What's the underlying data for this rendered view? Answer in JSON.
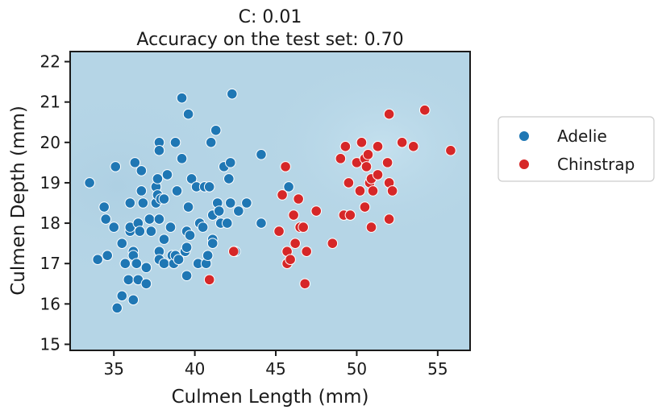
{
  "chart_data": {
    "type": "scatter",
    "title_line1": "C: 0.01",
    "title_line2": "Accuracy on the test set: 0.70",
    "xlabel": "Culmen Length (mm)",
    "ylabel": "Culmen Depth (mm)",
    "xlim": [
      32.3,
      57.0
    ],
    "ylim": [
      14.85,
      22.25
    ],
    "xticks": [
      35,
      40,
      45,
      50,
      55
    ],
    "yticks": [
      15,
      16,
      17,
      18,
      19,
      20,
      21,
      22
    ],
    "grid": false,
    "legend": "outside-right",
    "background_color": "#b5d5e6",
    "series": [
      {
        "name": "Adelie",
        "color": "#1f77b4",
        "points": [
          [
            33.5,
            19.0
          ],
          [
            34.0,
            17.1
          ],
          [
            34.4,
            18.4
          ],
          [
            34.5,
            18.1
          ],
          [
            34.6,
            17.2
          ],
          [
            35.0,
            17.9
          ],
          [
            35.1,
            19.4
          ],
          [
            35.2,
            15.9
          ],
          [
            35.5,
            17.5
          ],
          [
            35.5,
            16.2
          ],
          [
            35.7,
            17.0
          ],
          [
            35.9,
            16.6
          ],
          [
            36.0,
            17.8
          ],
          [
            36.0,
            17.9
          ],
          [
            36.0,
            18.5
          ],
          [
            36.2,
            17.3
          ],
          [
            36.2,
            17.2
          ],
          [
            36.2,
            16.1
          ],
          [
            36.3,
            19.5
          ],
          [
            36.4,
            17.0
          ],
          [
            36.5,
            16.6
          ],
          [
            36.5,
            18.0
          ],
          [
            36.6,
            17.8
          ],
          [
            36.7,
            18.8
          ],
          [
            36.7,
            19.3
          ],
          [
            36.8,
            18.5
          ],
          [
            37.0,
            16.9
          ],
          [
            37.0,
            16.5
          ],
          [
            37.2,
            18.1
          ],
          [
            37.3,
            17.8
          ],
          [
            37.6,
            18.9
          ],
          [
            37.6,
            18.5
          ],
          [
            37.7,
            18.7
          ],
          [
            37.7,
            19.1
          ],
          [
            37.8,
            20.0
          ],
          [
            37.8,
            19.8
          ],
          [
            37.8,
            18.1
          ],
          [
            37.9,
            18.6
          ],
          [
            37.8,
            17.3
          ],
          [
            37.8,
            17.1
          ],
          [
            38.1,
            18.6
          ],
          [
            38.1,
            17.6
          ],
          [
            38.1,
            17.0
          ],
          [
            38.3,
            19.2
          ],
          [
            38.5,
            17.9
          ],
          [
            38.6,
            17.2
          ],
          [
            38.7,
            17.0
          ],
          [
            38.8,
            17.2
          ],
          [
            38.8,
            20.0
          ],
          [
            38.9,
            18.8
          ],
          [
            39.0,
            17.1
          ],
          [
            39.2,
            21.1
          ],
          [
            39.2,
            19.6
          ],
          [
            39.4,
            17.3
          ],
          [
            39.5,
            17.8
          ],
          [
            39.5,
            16.7
          ],
          [
            39.5,
            17.4
          ],
          [
            39.6,
            18.4
          ],
          [
            39.6,
            20.7
          ],
          [
            39.7,
            17.7
          ],
          [
            39.8,
            19.1
          ],
          [
            40.1,
            18.9
          ],
          [
            40.2,
            17.0
          ],
          [
            40.3,
            18.0
          ],
          [
            40.5,
            17.9
          ],
          [
            40.6,
            18.9
          ],
          [
            40.7,
            17.0
          ],
          [
            40.8,
            17.2
          ],
          [
            40.9,
            18.9
          ],
          [
            41.0,
            20.0
          ],
          [
            41.1,
            17.6
          ],
          [
            41.1,
            17.5
          ],
          [
            41.1,
            18.2
          ],
          [
            41.3,
            20.3
          ],
          [
            41.4,
            18.5
          ],
          [
            41.5,
            18.3
          ],
          [
            41.6,
            18.0
          ],
          [
            41.8,
            19.4
          ],
          [
            42.0,
            18.0
          ],
          [
            42.1,
            19.1
          ],
          [
            42.2,
            18.5
          ],
          [
            42.2,
            19.5
          ],
          [
            42.3,
            21.2
          ],
          [
            42.5,
            17.3
          ],
          [
            42.7,
            18.3
          ],
          [
            43.2,
            18.5
          ],
          [
            44.1,
            19.7
          ],
          [
            44.1,
            18.0
          ],
          [
            45.8,
            18.9
          ]
        ]
      },
      {
        "name": "Chinstrap",
        "color": "#d62728",
        "points": [
          [
            40.9,
            16.6
          ],
          [
            42.4,
            17.3
          ],
          [
            45.2,
            17.8
          ],
          [
            45.4,
            18.7
          ],
          [
            45.6,
            19.4
          ],
          [
            45.7,
            17.3
          ],
          [
            45.7,
            17.0
          ],
          [
            45.9,
            17.1
          ],
          [
            46.1,
            18.2
          ],
          [
            46.2,
            17.5
          ],
          [
            46.4,
            18.6
          ],
          [
            46.5,
            17.9
          ],
          [
            46.7,
            17.9
          ],
          [
            46.8,
            16.5
          ],
          [
            46.9,
            17.3
          ],
          [
            47.5,
            18.3
          ],
          [
            48.5,
            17.5
          ],
          [
            49.0,
            19.6
          ],
          [
            49.2,
            18.2
          ],
          [
            49.3,
            19.9
          ],
          [
            49.5,
            19.0
          ],
          [
            49.6,
            18.2
          ],
          [
            50.0,
            19.5
          ],
          [
            50.2,
            18.8
          ],
          [
            50.3,
            20.0
          ],
          [
            50.5,
            19.6
          ],
          [
            50.5,
            18.4
          ],
          [
            50.6,
            19.4
          ],
          [
            50.7,
            19.7
          ],
          [
            50.8,
            19.0
          ],
          [
            50.9,
            19.1
          ],
          [
            50.9,
            17.9
          ],
          [
            51.0,
            18.8
          ],
          [
            51.3,
            19.9
          ],
          [
            51.3,
            19.2
          ],
          [
            51.9,
            19.5
          ],
          [
            52.0,
            18.1
          ],
          [
            52.0,
            19.0
          ],
          [
            52.0,
            20.7
          ],
          [
            52.2,
            18.8
          ],
          [
            52.8,
            20.0
          ],
          [
            53.5,
            19.9
          ],
          [
            54.2,
            20.8
          ],
          [
            55.8,
            19.8
          ]
        ]
      }
    ]
  }
}
